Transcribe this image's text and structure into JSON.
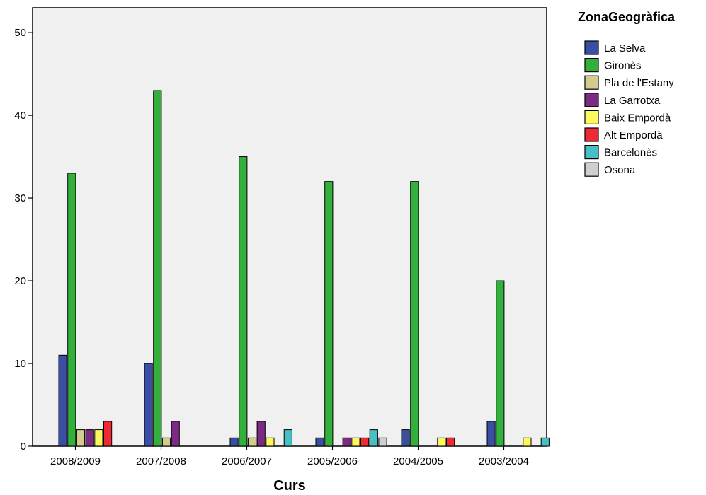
{
  "chart_data": {
    "type": "bar",
    "title": "",
    "xlabel": "Curs",
    "ylabel": "",
    "ylim": [
      0,
      53
    ],
    "yticks": [
      0,
      10,
      20,
      30,
      40,
      50
    ],
    "grid": false,
    "legend_position": "right",
    "legend_title": "ZonaGeogràfica",
    "categories": [
      "2008/2009",
      "2007/2008",
      "2006/2007",
      "2005/2006",
      "2004/2005",
      "2003/2004"
    ],
    "series": [
      {
        "name": "La Selva",
        "color": "#3a4fa3",
        "values": [
          11,
          10,
          1,
          1,
          2,
          3
        ]
      },
      {
        "name": "Gironès",
        "color": "#33b03c",
        "values": [
          33,
          43,
          35,
          32,
          32,
          20
        ]
      },
      {
        "name": "Pla de l'Estany",
        "color": "#d2cc8f",
        "values": [
          2,
          1,
          1,
          0,
          0,
          0
        ]
      },
      {
        "name": "La Garrotxa",
        "color": "#7d2a86",
        "values": [
          2,
          3,
          3,
          1,
          0,
          0
        ]
      },
      {
        "name": "Baix Empordà",
        "color": "#fbf95e",
        "values": [
          2,
          0,
          1,
          1,
          1,
          1
        ]
      },
      {
        "name": "Alt Empordà",
        "color": "#ee2b32",
        "values": [
          3,
          0,
          0,
          1,
          1,
          0
        ]
      },
      {
        "name": "Barcelonès",
        "color": "#46c0c4",
        "values": [
          0,
          0,
          2,
          2,
          0,
          1
        ]
      },
      {
        "name": "Osona",
        "color": "#cfcfcf",
        "values": [
          0,
          0,
          0,
          1,
          0,
          0
        ]
      }
    ],
    "plot_background": "#f0f0f0"
  }
}
